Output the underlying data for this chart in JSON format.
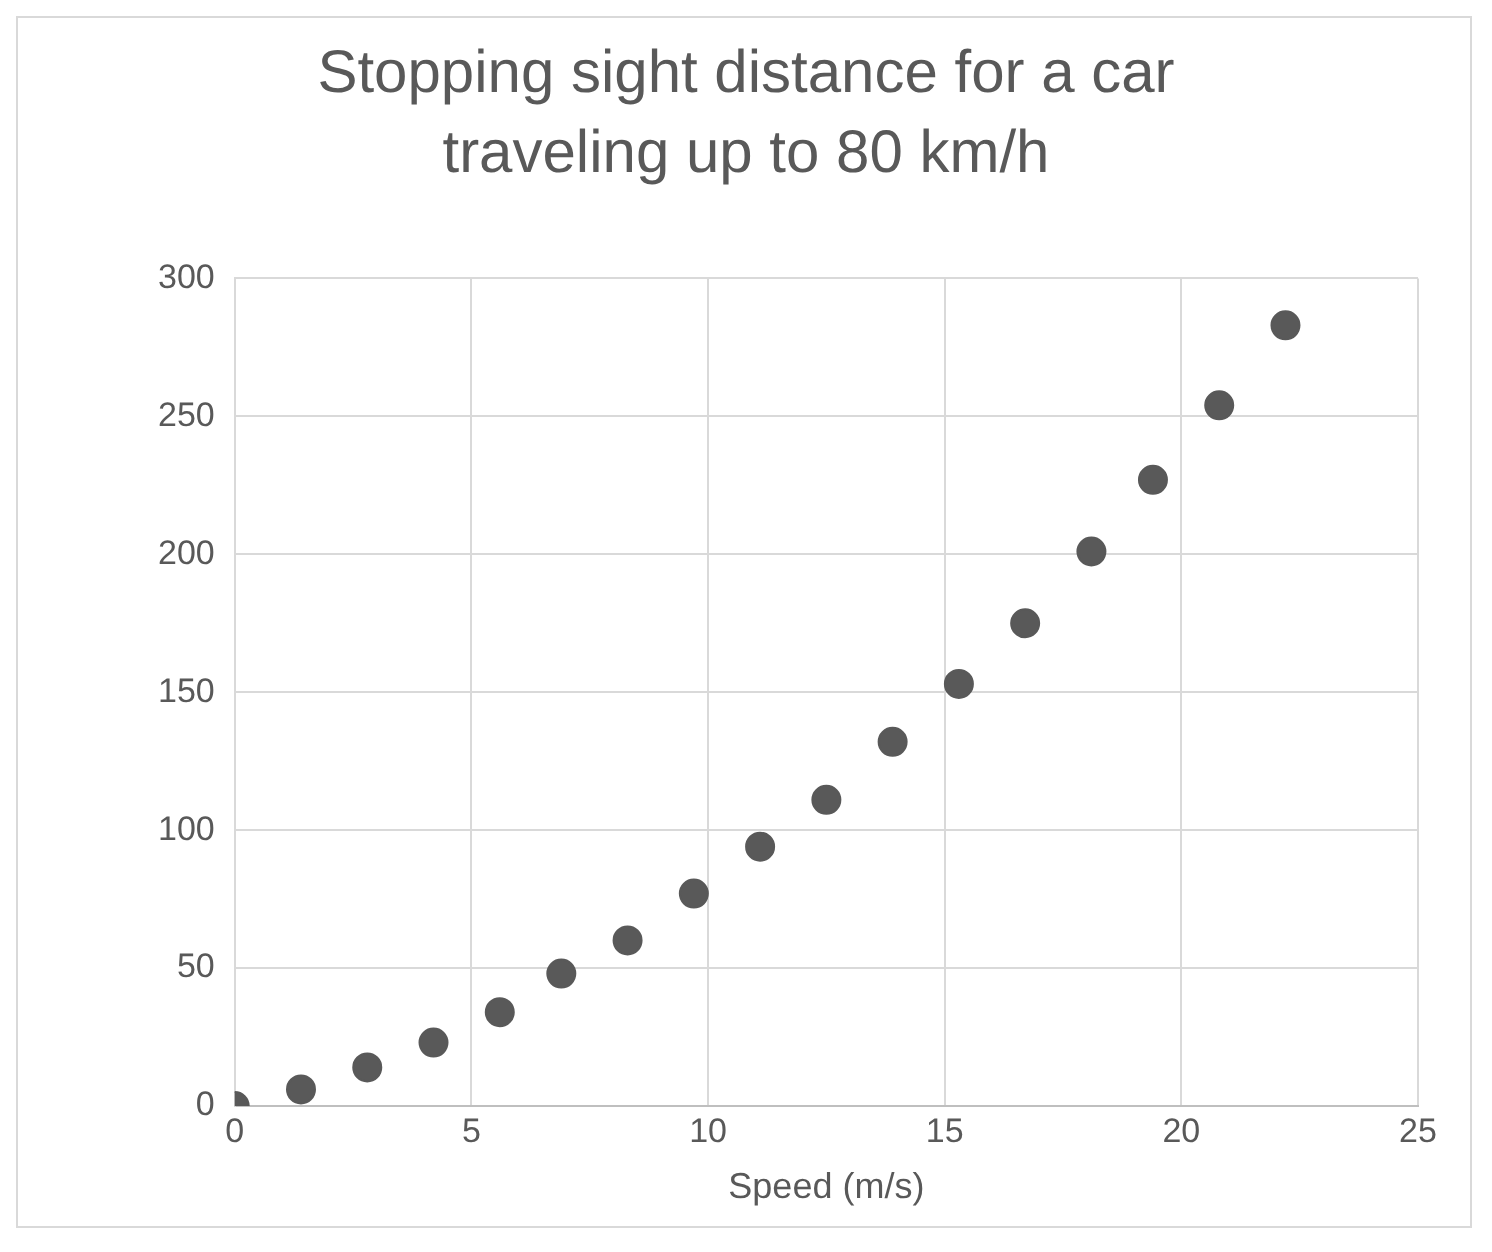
{
  "chart_data": {
    "type": "scatter",
    "title": "Stopping sight distance for a car traveling up to 80 km/h",
    "xlabel": "Speed (m/s)",
    "x": [
      0,
      1.4,
      2.8,
      4.2,
      5.6,
      6.9,
      8.3,
      9.7,
      11.1,
      12.5,
      13.9,
      15.3,
      16.7,
      18.1,
      19.4,
      20.8,
      22.2
    ],
    "series": [
      {
        "color": "#595959",
        "values": [
          0,
          6,
          14,
          23,
          34,
          48,
          60,
          77,
          94,
          111,
          132,
          153,
          175,
          201,
          227,
          254,
          283
        ]
      }
    ],
    "xlim": [
      0,
      25
    ],
    "xticks": [
      0,
      5,
      10,
      15,
      20,
      25
    ],
    "ylim": [
      0,
      300
    ],
    "yticks": [
      0,
      50,
      100,
      150,
      200,
      250,
      300
    ],
    "grid": true,
    "legend": false,
    "marker": "circle"
  }
}
